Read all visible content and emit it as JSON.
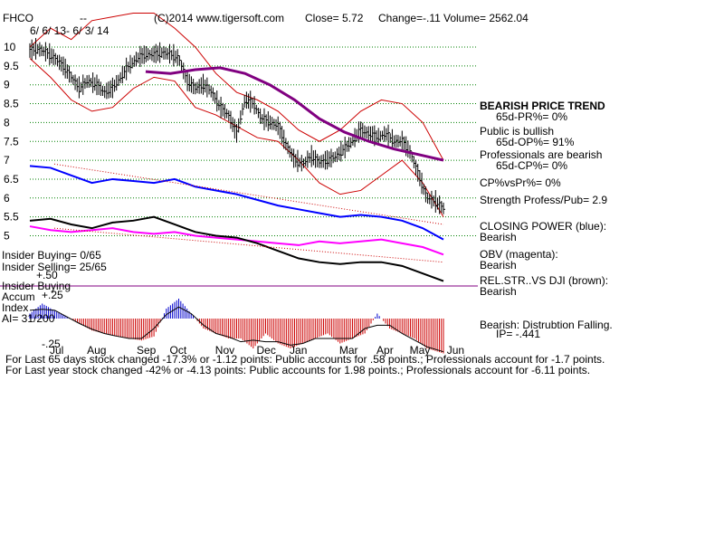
{
  "header": {
    "ticker": "FHCO",
    "dashes": "--",
    "copyright": "(C)2014 www.tigersoft.com",
    "close": "Close=  5.72",
    "change": "Change=-.11",
    "volume": "Volume= 2562.04",
    "date_range": "6/ 6/ 13- 6/ 3/ 14"
  },
  "side_panel": {
    "trend_title": "BEARISH PRICE TREND",
    "pr_pct": "65d-PR%= 0%",
    "public": "Public is bullish",
    "op_pct": "65d-OP%= 91%",
    "professionals": "Professionals are bearish",
    "cp_pct": "65d-CP%= 0%",
    "cp_vs_pr": "CP%vsPr%=  0%",
    "strength": "Strength Profess/Pub= 2.9",
    "closing_power": "CLOSING POWER (blue):",
    "closing_power_value": "Bearish",
    "obv": "OBV (magenta):",
    "obv_value": "Bearish",
    "rel_str": "REL.STR..VS DJI (brown):",
    "rel_str_value": "Bearish",
    "accum_note": "Bearish: Distrubtion Falling.",
    "ip": "IP= -.441"
  },
  "insider": {
    "buying": "Insider Buying= 0/65",
    "selling": "Insider Selling= 25/65",
    "buying_label": "Insider Buying"
  },
  "accum_labels": {
    "accum": "Accum",
    "index": "Index",
    "ai": "AI= 31/200",
    "plus50": "+.50",
    "plus25": "+.25",
    "minus25": "-.25"
  },
  "footer": {
    "line1": "For Last 65 days stock changed -17.3% or -1.12 points:  Public accounts for  .58 points.;  Professionals account for -1.7 points.",
    "line2": "For Last year stock changed -42% or -4.13 points:  Public accounts for  1.98 points.;  Professionals account for -6.11 points."
  },
  "colors": {
    "bars": "#000000",
    "upper_band": "#cc0000",
    "trend_ma": "#800080",
    "closing_power": "#0000ff",
    "obv": "#ff00ff",
    "rel_str": "#000000",
    "insider_line": "#800080",
    "accum_up": "#0000cc",
    "accum_down": "#cc0000",
    "grid": "#008000"
  },
  "chart_data": {
    "type": "line",
    "ylim": [
      5.2,
      10.4
    ],
    "yticks": [
      "10",
      "9.5",
      "9",
      "8.5",
      "8",
      "7.5",
      "7",
      "6.5",
      "6",
      "5.5",
      "5"
    ],
    "ytick_values": [
      10,
      9.5,
      9,
      8.5,
      8,
      7.5,
      7,
      6.5,
      6,
      5.5,
      5
    ],
    "months": [
      "Jul",
      "Aug",
      "Sep",
      "Oct",
      "Nov",
      "Dec",
      "Jan",
      "Mar",
      "Apr",
      "May",
      "Jun"
    ],
    "month_pos": [
      0.07,
      0.16,
      0.28,
      0.36,
      0.47,
      0.57,
      0.65,
      0.77,
      0.86,
      0.94,
      1.03
    ],
    "price": {
      "t": [
        0,
        0.02,
        0.04,
        0.06,
        0.08,
        0.1,
        0.12,
        0.14,
        0.16,
        0.18,
        0.2,
        0.22,
        0.24,
        0.26,
        0.28,
        0.3,
        0.32,
        0.34,
        0.36,
        0.38,
        0.4,
        0.42,
        0.44,
        0.46,
        0.48,
        0.5,
        0.52,
        0.54,
        0.56,
        0.58,
        0.6,
        0.62,
        0.64,
        0.66,
        0.68,
        0.7,
        0.72,
        0.74,
        0.76,
        0.78,
        0.8,
        0.82,
        0.84,
        0.86,
        0.88,
        0.9,
        0.92,
        0.94,
        0.96,
        0.98,
        1.0
      ],
      "close": [
        9.9,
        9.95,
        9.85,
        9.7,
        9.5,
        9.2,
        8.9,
        9.1,
        9.0,
        8.8,
        8.9,
        9.2,
        9.5,
        9.7,
        9.8,
        9.8,
        9.85,
        9.8,
        9.7,
        9.1,
        8.9,
        9.0,
        8.8,
        8.4,
        8.2,
        7.7,
        8.6,
        8.5,
        8.1,
        8.0,
        7.9,
        7.4,
        7.0,
        6.9,
        7.1,
        6.95,
        7.0,
        7.1,
        7.3,
        7.5,
        7.8,
        7.7,
        7.6,
        7.7,
        7.5,
        7.5,
        7.2,
        6.6,
        6.0,
        5.9,
        5.72
      ]
    },
    "upper_band": {
      "t": [
        0,
        0.05,
        0.1,
        0.15,
        0.2,
        0.25,
        0.3,
        0.35,
        0.4,
        0.45,
        0.5,
        0.55,
        0.6,
        0.65,
        0.7,
        0.75,
        0.8,
        0.85,
        0.9,
        0.95,
        1.0
      ],
      "v": [
        10.0,
        10.5,
        10.2,
        10.7,
        10.8,
        10.9,
        10.9,
        10.5,
        10.0,
        9.3,
        8.8,
        8.6,
        8.3,
        7.8,
        7.5,
        7.8,
        8.3,
        8.6,
        8.5,
        8.0,
        7.0
      ]
    },
    "lower_band": {
      "t": [
        0,
        0.05,
        0.1,
        0.15,
        0.2,
        0.25,
        0.3,
        0.35,
        0.4,
        0.45,
        0.5,
        0.55,
        0.6,
        0.65,
        0.7,
        0.75,
        0.8,
        0.85,
        0.9,
        0.95,
        1.0
      ],
      "v": [
        9.7,
        9.2,
        8.6,
        8.3,
        8.4,
        8.9,
        9.2,
        9.1,
        8.4,
        8.2,
        7.9,
        7.6,
        7.5,
        7.0,
        6.4,
        6.1,
        6.2,
        6.6,
        7.0,
        6.4,
        5.5
      ]
    },
    "trend_ma": {
      "t": [
        0.28,
        0.34,
        0.4,
        0.46,
        0.52,
        0.58,
        0.64,
        0.7,
        0.76,
        0.82,
        0.88,
        0.94,
        1.0
      ],
      "v": [
        9.35,
        9.3,
        9.4,
        9.45,
        9.3,
        9.0,
        8.6,
        8.1,
        7.75,
        7.5,
        7.3,
        7.15,
        7.0
      ]
    },
    "closing_power": {
      "t": [
        0,
        0.05,
        0.1,
        0.15,
        0.2,
        0.25,
        0.3,
        0.35,
        0.4,
        0.45,
        0.5,
        0.55,
        0.6,
        0.65,
        0.7,
        0.75,
        0.8,
        0.85,
        0.9,
        0.95,
        1.0
      ],
      "v": [
        6.85,
        6.8,
        6.6,
        6.4,
        6.5,
        6.45,
        6.4,
        6.5,
        6.3,
        6.2,
        6.1,
        5.95,
        5.8,
        5.7,
        5.6,
        5.5,
        5.55,
        5.5,
        5.4,
        5.2,
        4.9
      ]
    },
    "rel_str": {
      "t": [
        0,
        0.05,
        0.1,
        0.15,
        0.2,
        0.25,
        0.3,
        0.35,
        0.4,
        0.45,
        0.5,
        0.55,
        0.6,
        0.65,
        0.7,
        0.75,
        0.8,
        0.85,
        0.9,
        0.95,
        1.0
      ],
      "v": [
        5.4,
        5.45,
        5.3,
        5.2,
        5.35,
        5.4,
        5.5,
        5.3,
        5.1,
        5.0,
        4.95,
        4.8,
        4.6,
        4.4,
        4.3,
        4.25,
        4.3,
        4.3,
        4.2,
        4.0,
        3.8
      ]
    },
    "obv": {
      "t": [
        0,
        0.05,
        0.1,
        0.15,
        0.2,
        0.25,
        0.3,
        0.35,
        0.4,
        0.45,
        0.5,
        0.55,
        0.6,
        0.65,
        0.7,
        0.75,
        0.8,
        0.85,
        0.9,
        0.95,
        1.0
      ],
      "v": [
        5.25,
        5.15,
        5.1,
        5.15,
        5.2,
        5.1,
        5.05,
        5.1,
        5.0,
        4.95,
        4.9,
        4.85,
        4.8,
        4.75,
        4.85,
        4.8,
        4.85,
        4.9,
        4.8,
        4.7,
        4.5
      ]
    },
    "accum_index": {
      "t": [
        0,
        0.03,
        0.06,
        0.09,
        0.12,
        0.15,
        0.18,
        0.21,
        0.24,
        0.27,
        0.3,
        0.33,
        0.36,
        0.39,
        0.42,
        0.45,
        0.48,
        0.51,
        0.54,
        0.57,
        0.6,
        0.63,
        0.66,
        0.69,
        0.72,
        0.75,
        0.78,
        0.81,
        0.84,
        0.87,
        0.9,
        0.93,
        0.96,
        1.0
      ],
      "v": [
        0.05,
        0.15,
        0.08,
        0.02,
        -0.05,
        -0.12,
        -0.15,
        -0.18,
        -0.2,
        -0.22,
        -0.18,
        0.1,
        0.2,
        0.05,
        -0.1,
        -0.15,
        -0.2,
        -0.2,
        -0.3,
        -0.15,
        -0.25,
        -0.3,
        -0.25,
        -0.2,
        -0.15,
        -0.25,
        -0.2,
        -0.15,
        0.05,
        -0.1,
        -0.15,
        -0.2,
        -0.3,
        -0.35
      ]
    }
  }
}
